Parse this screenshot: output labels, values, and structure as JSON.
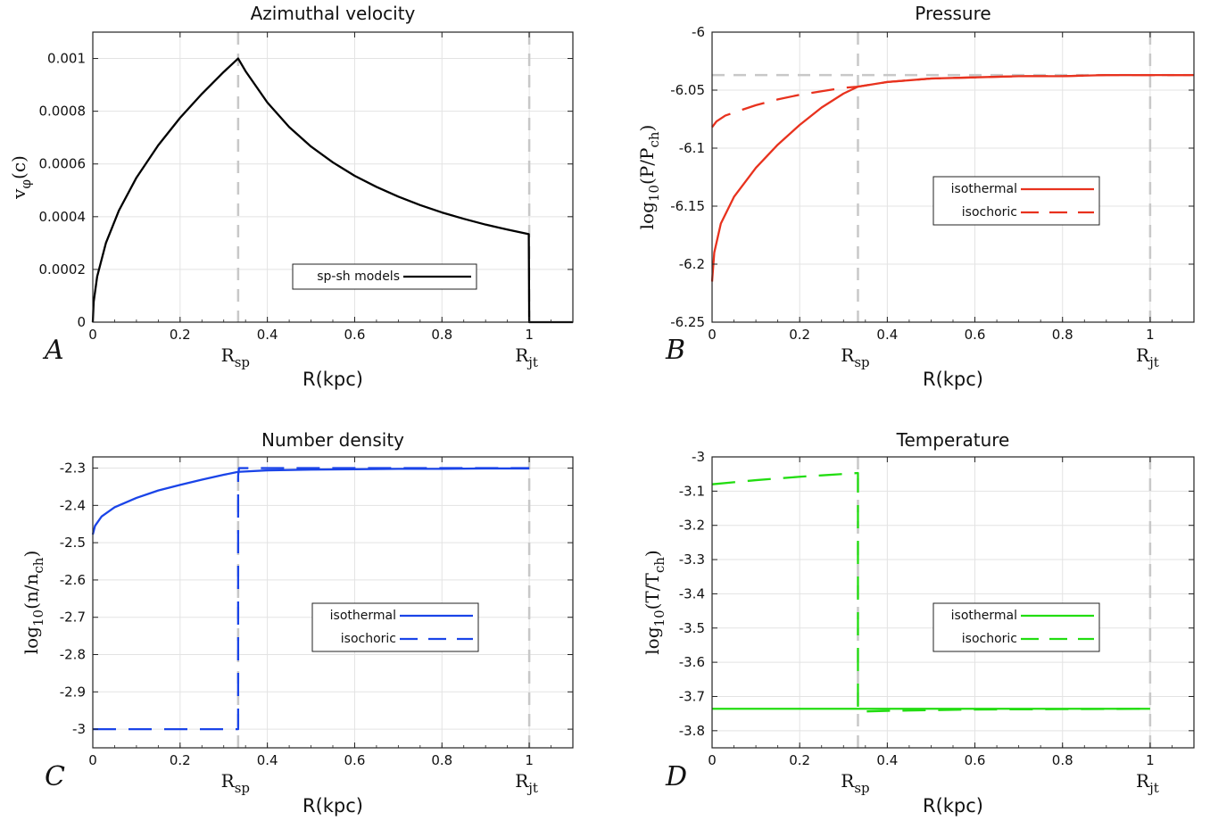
{
  "chart_data": [
    {
      "type": "line",
      "panel_letter": "A",
      "title": "Azimuthal velocity",
      "xlabel": "R(kpc)",
      "ylabel": "vφ(c)",
      "ylabel_main": "v",
      "ylabel_sub": "φ",
      "ylabel_tail": "(c)",
      "xlim": [
        0,
        1.1
      ],
      "ylim": [
        0,
        0.0011
      ],
      "xticks": [
        0,
        0.2,
        0.4,
        0.6,
        0.8,
        1
      ],
      "xtick_labels": [
        "0",
        "0.2",
        "0.4",
        "0.6",
        "0.8",
        "1"
      ],
      "yticks": [
        0,
        0.0002,
        0.0004,
        0.0006,
        0.0008,
        0.001
      ],
      "ytick_labels": [
        "0",
        "0.0002",
        "0.0004",
        "0.0006",
        "0.0008",
        "0.001"
      ],
      "grid": true,
      "markers": [
        {
          "x": 0.333,
          "label": "R",
          "sub": "sp"
        },
        {
          "x": 1.0,
          "label": "R",
          "sub": "jt"
        }
      ],
      "legend": {
        "position": "bottom-right"
      },
      "series": [
        {
          "name": "sp-sh models",
          "color": "#000000",
          "dash": "solid",
          "x": [
            0,
            0.002,
            0.01,
            0.03,
            0.06,
            0.1,
            0.15,
            0.2,
            0.25,
            0.3,
            0.333,
            0.35,
            0.4,
            0.45,
            0.5,
            0.55,
            0.6,
            0.65,
            0.7,
            0.75,
            0.8,
            0.85,
            0.9,
            0.95,
            0.999,
            1.0,
            1.1
          ],
          "y": [
            0,
            7.7e-05,
            0.000173,
            0.0003,
            0.000424,
            0.000548,
            0.000671,
            0.000775,
            0.000866,
            0.000949,
            0.001,
            0.000952,
            0.000833,
            0.00074,
            0.000666,
            0.000606,
            0.000555,
            0.000513,
            0.000476,
            0.000444,
            0.000416,
            0.000392,
            0.00037,
            0.000351,
            0.000334,
            0,
            0
          ]
        }
      ]
    },
    {
      "type": "line",
      "panel_letter": "B",
      "title": "Pressure",
      "xlabel": "R(kpc)",
      "ylabel_main": "log",
      "ylabel_sub": "10",
      "ylabel_tail": "(P/P",
      "ylabel_sub2": "ch",
      "ylabel_end": ")",
      "xlim": [
        0,
        1.1
      ],
      "ylim": [
        -6.25,
        -6
      ],
      "xticks": [
        0,
        0.2,
        0.4,
        0.6,
        0.8,
        1
      ],
      "xtick_labels": [
        "0",
        "0.2",
        "0.4",
        "0.6",
        "0.8",
        "1"
      ],
      "yticks": [
        -6.25,
        -6.2,
        -6.15,
        -6.1,
        -6.05,
        -6
      ],
      "ytick_labels": [
        "-6.25",
        "-6.2",
        "-6.15",
        "-6.1",
        "-6.05",
        "-6"
      ],
      "grid": true,
      "markers": [
        {
          "x": 0.333,
          "label": "R",
          "sub": "sp"
        },
        {
          "x": 1.0,
          "label": "R",
          "sub": "jt"
        }
      ],
      "hline": -6.037,
      "legend": {
        "position": "center-right"
      },
      "series": [
        {
          "name": "isothermal",
          "color": "#e8321e",
          "dash": "solid",
          "x": [
            0,
            0.005,
            0.02,
            0.05,
            0.1,
            0.15,
            0.2,
            0.25,
            0.3,
            0.333,
            0.4,
            0.5,
            0.6,
            0.7,
            0.8,
            0.9,
            1.0,
            1.1
          ],
          "y": [
            -6.215,
            -6.19,
            -6.165,
            -6.142,
            -6.117,
            -6.097,
            -6.08,
            -6.065,
            -6.053,
            -6.047,
            -6.043,
            -6.04,
            -6.039,
            -6.038,
            -6.038,
            -6.037,
            -6.037,
            -6.037
          ]
        },
        {
          "name": "isochoric",
          "color": "#e8321e",
          "dash": "long",
          "x": [
            0,
            0.01,
            0.03,
            0.06,
            0.1,
            0.15,
            0.2,
            0.25,
            0.3,
            0.333,
            0.4,
            0.5,
            0.6,
            0.7,
            0.8,
            0.9,
            1.0,
            1.1
          ],
          "y": [
            -6.082,
            -6.077,
            -6.072,
            -6.068,
            -6.063,
            -6.058,
            -6.054,
            -6.051,
            -6.048,
            -6.047,
            -6.043,
            -6.04,
            -6.039,
            -6.038,
            -6.038,
            -6.037,
            -6.037,
            -6.037
          ]
        }
      ]
    },
    {
      "type": "line",
      "panel_letter": "C",
      "title": "Number density",
      "xlabel": "R(kpc)",
      "ylabel_main": "log",
      "ylabel_sub": "10",
      "ylabel_tail": "(n/n",
      "ylabel_sub2": "ch",
      "ylabel_end": ")",
      "xlim": [
        0,
        1.1
      ],
      "ylim": [
        -3.05,
        -2.27
      ],
      "xticks": [
        0,
        0.2,
        0.4,
        0.6,
        0.8,
        1
      ],
      "xtick_labels": [
        "0",
        "0.2",
        "0.4",
        "0.6",
        "0.8",
        "1"
      ],
      "yticks": [
        -3,
        -2.9,
        -2.8,
        -2.7,
        -2.6,
        -2.5,
        -2.4,
        -2.3
      ],
      "ytick_labels": [
        "-3",
        "-2.9",
        "-2.8",
        "-2.7",
        "-2.6",
        "-2.5",
        "-2.4",
        "-2.3"
      ],
      "grid": true,
      "markers": [
        {
          "x": 0.333,
          "label": "R",
          "sub": "sp"
        },
        {
          "x": 1.0,
          "label": "R",
          "sub": "jt"
        }
      ],
      "legend": {
        "position": "center-right"
      },
      "series": [
        {
          "name": "isothermal",
          "color": "#1a44e8",
          "dash": "solid",
          "x": [
            0,
            0.005,
            0.02,
            0.05,
            0.1,
            0.15,
            0.2,
            0.25,
            0.3,
            0.333,
            0.4,
            0.5,
            0.6,
            0.7,
            0.8,
            0.9,
            1.0
          ],
          "y": [
            -2.478,
            -2.455,
            -2.43,
            -2.405,
            -2.38,
            -2.36,
            -2.345,
            -2.331,
            -2.318,
            -2.31,
            -2.306,
            -2.304,
            -2.303,
            -2.302,
            -2.302,
            -2.301,
            -2.301
          ]
        },
        {
          "name": "isochoric",
          "color": "#1a44e8",
          "dash": "long",
          "x": [
            0,
            0.333,
            0.333,
            0.335,
            1.0
          ],
          "y": [
            -3.0,
            -3.0,
            -2.32,
            -2.3,
            -2.3
          ]
        }
      ]
    },
    {
      "type": "line",
      "panel_letter": "D",
      "title": "Temperature",
      "xlabel": "R(kpc)",
      "ylabel_main": "log",
      "ylabel_sub": "10",
      "ylabel_tail": "(T/T",
      "ylabel_sub2": "ch",
      "ylabel_end": ")",
      "xlim": [
        0,
        1.1
      ],
      "ylim": [
        -3.85,
        -3
      ],
      "xticks": [
        0,
        0.2,
        0.4,
        0.6,
        0.8,
        1
      ],
      "xtick_labels": [
        "0",
        "0.2",
        "0.4",
        "0.6",
        "0.8",
        "1"
      ],
      "yticks": [
        -3.8,
        -3.7,
        -3.6,
        -3.5,
        -3.4,
        -3.3,
        -3.2,
        -3.1,
        -3
      ],
      "ytick_labels": [
        "-3.8",
        "-3.7",
        "-3.6",
        "-3.5",
        "-3.4",
        "-3.3",
        "-3.2",
        "-3.1",
        "-3"
      ],
      "grid": true,
      "markers": [
        {
          "x": 0.333,
          "label": "R",
          "sub": "sp"
        },
        {
          "x": 1.0,
          "label": "R",
          "sub": "jt"
        }
      ],
      "legend": {
        "position": "center-right"
      },
      "series": [
        {
          "name": "isothermal",
          "color": "#22dd11",
          "dash": "solid",
          "x": [
            0,
            1.0
          ],
          "y": [
            -3.736,
            -3.736
          ]
        },
        {
          "name": "isochoric",
          "color": "#22dd11",
          "dash": "long",
          "x": [
            0,
            0.05,
            0.1,
            0.15,
            0.2,
            0.25,
            0.3,
            0.333,
            0.333,
            0.34,
            0.4,
            0.5,
            0.6,
            0.8,
            1.0
          ],
          "y": [
            -3.08,
            -3.074,
            -3.068,
            -3.063,
            -3.058,
            -3.054,
            -3.05,
            -3.047,
            -3.74,
            -3.744,
            -3.742,
            -3.74,
            -3.738,
            -3.737,
            -3.736
          ]
        }
      ]
    }
  ]
}
